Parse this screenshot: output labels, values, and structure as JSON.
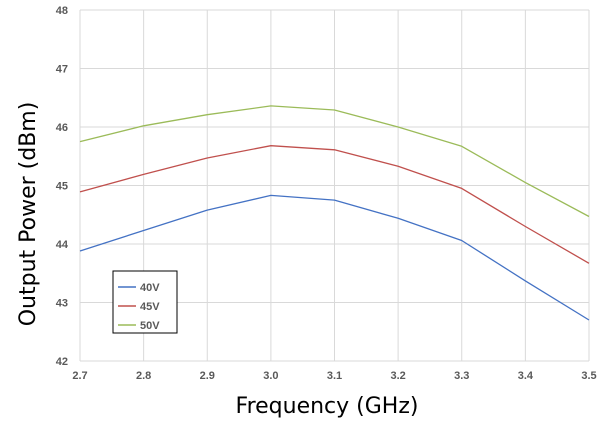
{
  "chart_data": {
    "type": "line",
    "title": "",
    "xlabel": "Frequency (GHz)",
    "ylabel": "Output Power (dBm)",
    "x": [
      2.7,
      2.8,
      2.9,
      3.0,
      3.1,
      3.2,
      3.3,
      3.4,
      3.5
    ],
    "x_tick_labels": [
      "2.7",
      "2.8",
      "2.9",
      "3.0",
      "3.1",
      "3.2",
      "3.3",
      "3.4",
      "3.5"
    ],
    "y_tick_labels": [
      "42",
      "43",
      "44",
      "45",
      "46",
      "47",
      "48"
    ],
    "xlim": [
      2.7,
      3.5
    ],
    "ylim": [
      42,
      48
    ],
    "grid": true,
    "legend_position": "bottom-left",
    "series": [
      {
        "name": "40V",
        "color": "#4472c4",
        "values": [
          43.88,
          44.23,
          44.58,
          44.83,
          44.75,
          44.44,
          44.06,
          43.37,
          42.7
        ]
      },
      {
        "name": "45V",
        "color": "#c0504d",
        "values": [
          44.89,
          45.19,
          45.47,
          45.68,
          45.61,
          45.33,
          44.95,
          44.3,
          43.67
        ]
      },
      {
        "name": "50V",
        "color": "#9bbb59",
        "values": [
          45.75,
          46.02,
          46.21,
          46.36,
          46.29,
          46.0,
          45.67,
          45.05,
          44.47
        ]
      }
    ]
  }
}
